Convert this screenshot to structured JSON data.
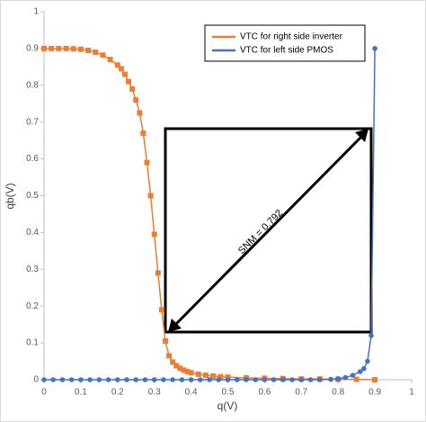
{
  "chart_data": {
    "type": "line",
    "x_label": "q(V)",
    "y_label": "qb(V)",
    "xlim": [
      0,
      1
    ],
    "ylim": [
      0,
      1
    ],
    "xticks": [
      0,
      0.1,
      0.2,
      0.3,
      0.4,
      0.5,
      0.6,
      0.7,
      0.8,
      0.9,
      1
    ],
    "yticks": [
      0,
      0.1,
      0.2,
      0.3,
      0.4,
      0.5,
      0.6,
      0.7,
      0.8,
      0.9,
      1
    ],
    "grid": false,
    "legend": "top-right",
    "annotation": "SNM = 0.792",
    "series": [
      {
        "name": "VTC for right side inverter",
        "color": "#ed7d31",
        "marker": "square",
        "x": [
          0,
          0.02,
          0.04,
          0.06,
          0.08,
          0.1,
          0.12,
          0.14,
          0.16,
          0.18,
          0.2,
          0.21,
          0.22,
          0.23,
          0.24,
          0.25,
          0.26,
          0.27,
          0.28,
          0.29,
          0.3,
          0.31,
          0.32,
          0.33,
          0.34,
          0.35,
          0.36,
          0.37,
          0.38,
          0.39,
          0.4,
          0.42,
          0.44,
          0.46,
          0.48,
          0.5,
          0.55,
          0.6,
          0.65,
          0.7,
          0.75,
          0.8,
          0.85,
          0.9
        ],
        "values": [
          0.9,
          0.9,
          0.9,
          0.9,
          0.899,
          0.898,
          0.895,
          0.89,
          0.882,
          0.87,
          0.855,
          0.845,
          0.83,
          0.81,
          0.79,
          0.76,
          0.725,
          0.67,
          0.59,
          0.5,
          0.395,
          0.29,
          0.19,
          0.105,
          0.065,
          0.048,
          0.038,
          0.031,
          0.026,
          0.022,
          0.019,
          0.015,
          0.012,
          0.01,
          0.008,
          0.007,
          0.005,
          0.004,
          0.003,
          0.002,
          0.002,
          0.001,
          0.001,
          0
        ]
      },
      {
        "name": "VTC for left side PMOS",
        "color": "#4472c4",
        "marker": "circle",
        "x": [
          0,
          0.025,
          0.05,
          0.075,
          0.1,
          0.125,
          0.15,
          0.175,
          0.2,
          0.225,
          0.25,
          0.275,
          0.3,
          0.325,
          0.35,
          0.375,
          0.4,
          0.425,
          0.45,
          0.475,
          0.5,
          0.525,
          0.55,
          0.575,
          0.6,
          0.625,
          0.65,
          0.675,
          0.7,
          0.725,
          0.75,
          0.78,
          0.8,
          0.82,
          0.84,
          0.86,
          0.87,
          0.88,
          0.89,
          0.9
        ],
        "values": [
          0,
          0,
          0,
          0,
          0,
          0,
          0,
          0,
          0,
          0,
          0,
          0,
          0,
          0,
          0,
          0,
          0,
          0,
          0,
          0,
          0,
          0,
          0,
          0,
          0,
          0,
          0,
          0,
          0,
          0,
          0,
          0.001,
          0.003,
          0.006,
          0.012,
          0.022,
          0.03,
          0.05,
          0.12,
          0.9
        ]
      }
    ]
  }
}
